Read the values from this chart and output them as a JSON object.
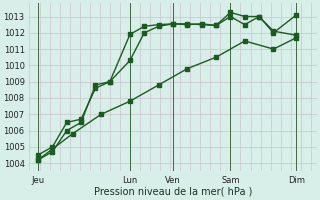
{
  "bg_color": "#d8eee8",
  "grid_color_h": "#c8b8c8",
  "grid_color_v": "#c8b8c8",
  "line_color": "#1a5c20",
  "xlabel": "Pression niveau de la mer( hPa )",
  "ylim": [
    1003.5,
    1013.8
  ],
  "yticks": [
    1004,
    1005,
    1006,
    1007,
    1008,
    1009,
    1010,
    1011,
    1012,
    1013
  ],
  "xlim": [
    0,
    10
  ],
  "day_positions": [
    0.3,
    3.5,
    5.0,
    7.0,
    9.3
  ],
  "day_labels": [
    "Jeu",
    "Lun",
    "Ven",
    "Sam",
    "Dim"
  ],
  "vline_positions": [
    0.3,
    3.5,
    5.0,
    7.0,
    9.3
  ],
  "line1_x": [
    0.3,
    0.8,
    1.3,
    1.8,
    2.3,
    2.8,
    3.5,
    4.0,
    4.5,
    5.0,
    5.5,
    6.0,
    6.5,
    7.0,
    7.5,
    8.0,
    8.5,
    9.3
  ],
  "line1_y": [
    1004.2,
    1004.7,
    1006.0,
    1006.5,
    1008.8,
    1009.0,
    1011.9,
    1012.4,
    1012.5,
    1012.55,
    1012.5,
    1012.55,
    1012.45,
    1013.25,
    1013.0,
    1013.0,
    1012.0,
    1013.1
  ],
  "line2_x": [
    0.3,
    0.8,
    1.3,
    1.8,
    2.3,
    2.8,
    3.5,
    4.0,
    4.5,
    5.0,
    5.5,
    6.0,
    6.5,
    7.0,
    7.5,
    8.0,
    8.5,
    9.3
  ],
  "line2_y": [
    1004.5,
    1005.0,
    1006.5,
    1006.7,
    1008.6,
    1009.0,
    1010.3,
    1012.0,
    1012.4,
    1012.55,
    1012.55,
    1012.5,
    1012.45,
    1013.0,
    1012.5,
    1013.0,
    1012.1,
    1011.85
  ],
  "line3_x": [
    0.3,
    1.5,
    2.5,
    3.5,
    4.5,
    5.5,
    6.5,
    7.5,
    8.5,
    9.3
  ],
  "line3_y": [
    1004.2,
    1005.8,
    1007.0,
    1007.8,
    1008.8,
    1009.8,
    1010.5,
    1011.5,
    1011.0,
    1011.7
  ],
  "marker": "s",
  "markersize": 2.5,
  "linewidth": 1.0
}
